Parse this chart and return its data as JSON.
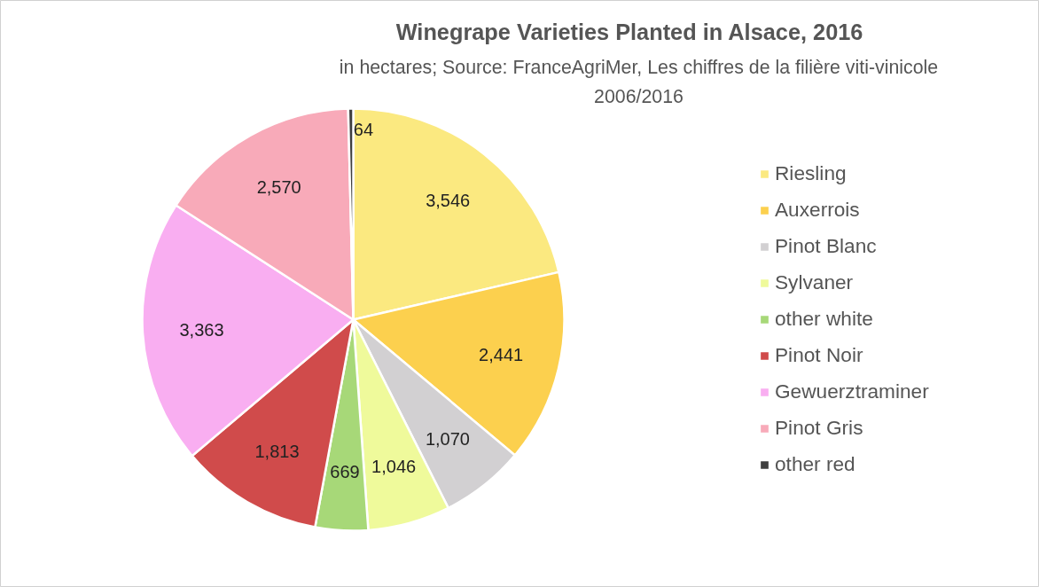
{
  "chart_data": {
    "type": "pie",
    "title": "Winegrape Varieties Planted in Alsace, 2016",
    "subtitle": "in hectares; Source: FranceAgriMer, Les chiffres de la filière viti-vinicole 2006/2016",
    "categories": [
      "Riesling",
      "Auxerrois",
      "Pinot Blanc",
      "Sylvaner",
      "other white",
      "Pinot Noir",
      "Gewuerztraminer",
      "Pinot Gris",
      "other red"
    ],
    "values": [
      3546,
      2441,
      1070,
      1046,
      669,
      1813,
      3363,
      2570,
      64
    ],
    "colors": [
      "#fbe980",
      "#fcd04e",
      "#d2d0d2",
      "#effa9b",
      "#a7d878",
      "#d04b4b",
      "#f9aef1",
      "#f8aab9",
      "#3f3f3f"
    ],
    "value_labels": [
      "3,546",
      "2,441",
      "1,070",
      "1,046",
      "669",
      "1,813",
      "3,363",
      "2,570",
      "64"
    ],
    "legend": "right"
  }
}
